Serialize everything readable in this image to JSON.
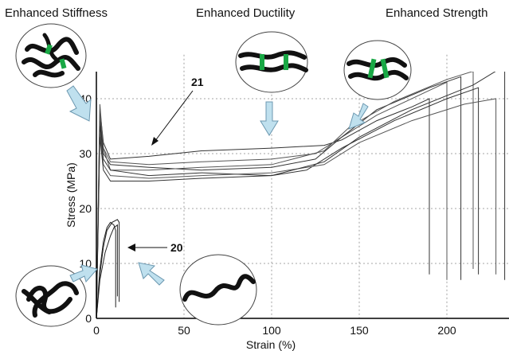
{
  "headers": {
    "stiffness": "Enhanced Stiffness",
    "ductility": "Enhanced Ductility",
    "strength": "Enhanced Strength"
  },
  "chart_data": {
    "type": "line",
    "title": "",
    "xlabel": "Strain (%)",
    "ylabel": "Stress (MPa)",
    "xlim": [
      0,
      235
    ],
    "ylim": [
      0,
      48
    ],
    "x_ticks": [
      0,
      50,
      100,
      150,
      200
    ],
    "y_ticks": [
      0,
      10,
      20,
      30,
      40
    ],
    "grid": "dashed",
    "annotations": [
      {
        "text": "21",
        "points_to": [
          30,
          29
        ]
      },
      {
        "text": "20",
        "points_to": [
          18,
          16
        ]
      }
    ],
    "series": [
      {
        "group": "21",
        "points": [
          [
            0,
            0
          ],
          [
            2,
            38
          ],
          [
            4,
            32
          ],
          [
            8,
            29
          ],
          [
            30,
            29.5
          ],
          [
            60,
            30.5
          ],
          [
            100,
            31
          ],
          [
            130,
            31.5
          ],
          [
            140,
            32.5
          ],
          [
            160,
            36
          ],
          [
            180,
            38.5
          ],
          [
            190,
            40
          ],
          [
            190,
            8
          ]
        ]
      },
      {
        "group": "21",
        "points": [
          [
            0,
            0
          ],
          [
            2,
            37
          ],
          [
            4,
            31
          ],
          [
            8,
            28.5
          ],
          [
            30,
            28
          ],
          [
            60,
            28.5
          ],
          [
            100,
            29
          ],
          [
            125,
            30
          ],
          [
            140,
            33
          ],
          [
            160,
            37
          ],
          [
            190,
            41.5
          ],
          [
            200,
            43
          ],
          [
            200,
            7
          ]
        ]
      },
      {
        "group": "21",
        "points": [
          [
            0,
            0
          ],
          [
            2,
            36
          ],
          [
            4,
            30
          ],
          [
            8,
            28
          ],
          [
            30,
            27.5
          ],
          [
            60,
            27
          ],
          [
            100,
            27.5
          ],
          [
            125,
            29
          ],
          [
            140,
            33
          ],
          [
            160,
            38
          ],
          [
            190,
            42
          ],
          [
            208,
            44
          ],
          [
            208,
            7
          ]
        ]
      },
      {
        "group": "21",
        "points": [
          [
            0,
            0
          ],
          [
            2,
            39
          ],
          [
            4,
            31
          ],
          [
            8,
            27
          ],
          [
            30,
            27
          ],
          [
            60,
            27.5
          ],
          [
            100,
            28
          ],
          [
            130,
            30.5
          ],
          [
            145,
            35
          ],
          [
            170,
            39.5
          ],
          [
            200,
            43.5
          ],
          [
            215,
            45
          ],
          [
            215,
            9
          ]
        ]
      },
      {
        "group": "21",
        "points": [
          [
            0,
            0
          ],
          [
            2,
            35
          ],
          [
            4,
            29
          ],
          [
            8,
            27
          ],
          [
            30,
            26
          ],
          [
            60,
            26.5
          ],
          [
            100,
            26
          ],
          [
            120,
            27
          ],
          [
            140,
            31
          ],
          [
            170,
            36
          ],
          [
            200,
            40
          ],
          [
            218,
            42
          ],
          [
            218,
            8
          ]
        ]
      },
      {
        "group": "21",
        "points": [
          [
            0,
            0
          ],
          [
            2,
            34
          ],
          [
            4,
            28
          ],
          [
            8,
            26
          ],
          [
            30,
            25.5
          ],
          [
            60,
            26
          ],
          [
            100,
            26.5
          ],
          [
            130,
            28
          ],
          [
            150,
            32
          ],
          [
            180,
            36
          ],
          [
            210,
            39
          ],
          [
            228,
            40
          ],
          [
            228,
            8
          ]
        ]
      },
      {
        "group": "21",
        "points": [
          [
            0,
            0
          ],
          [
            2,
            33
          ],
          [
            4,
            27
          ],
          [
            8,
            25
          ],
          [
            30,
            25
          ],
          [
            60,
            25.5
          ],
          [
            100,
            26
          ],
          [
            130,
            28.5
          ],
          [
            150,
            33
          ],
          [
            180,
            38
          ],
          [
            215,
            42.5
          ],
          [
            233,
            46
          ],
          [
            233,
            7
          ]
        ]
      },
      {
        "group": "20",
        "points": [
          [
            0,
            0
          ],
          [
            2,
            9
          ],
          [
            4,
            14
          ],
          [
            6,
            16.5
          ],
          [
            8,
            17.5
          ],
          [
            10,
            17
          ],
          [
            11,
            16
          ],
          [
            11,
            2
          ]
        ]
      },
      {
        "group": "20",
        "points": [
          [
            0,
            0
          ],
          [
            2,
            8
          ],
          [
            4,
            13
          ],
          [
            6,
            16
          ],
          [
            9,
            17.5
          ],
          [
            12,
            18
          ],
          [
            13,
            17.5
          ],
          [
            13,
            3
          ]
        ]
      },
      {
        "group": "20",
        "points": [
          [
            0,
            0
          ],
          [
            2,
            7
          ],
          [
            5,
            12
          ],
          [
            8,
            15
          ],
          [
            10,
            16.5
          ],
          [
            12,
            17
          ],
          [
            12,
            4
          ]
        ]
      }
    ]
  }
}
